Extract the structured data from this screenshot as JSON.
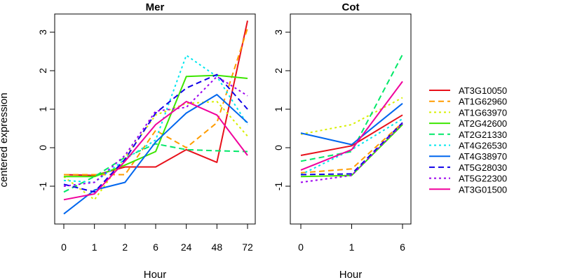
{
  "figure": {
    "ylabel": "centered expression"
  },
  "chart_data": [
    {
      "type": "line",
      "title": "Mer",
      "xlabel": "Hour",
      "ylabel": "centered expression",
      "categories": [
        "0",
        "1",
        "2",
        "6",
        "24",
        "48",
        "72"
      ],
      "ylim": [
        -2.0,
        3.4
      ],
      "yticks": [
        -1,
        0,
        1,
        2,
        3
      ],
      "grid": false,
      "series": [
        {
          "name": "AT3G10050",
          "color": "#e8101a",
          "dash": "solid",
          "values": [
            -0.7,
            -0.72,
            -0.5,
            -0.5,
            -0.05,
            -0.38,
            3.3
          ]
        },
        {
          "name": "AT1G62960",
          "color": "#ff9c00",
          "dash": "dashed",
          "values": [
            -0.7,
            -0.7,
            -0.7,
            0.45,
            0.0,
            0.65,
            3.1
          ]
        },
        {
          "name": "AT1G63970",
          "color": "#d7f000",
          "dash": "dotted",
          "values": [
            -0.75,
            -1.35,
            -0.25,
            0.85,
            1.15,
            1.2,
            0.3
          ]
        },
        {
          "name": "AT2G42600",
          "color": "#3ce600",
          "dash": "solid",
          "values": [
            -0.75,
            -0.75,
            -0.45,
            -0.1,
            1.85,
            1.88,
            1.8
          ]
        },
        {
          "name": "AT2G21330",
          "color": "#00e868",
          "dash": "dashed",
          "values": [
            -1.15,
            -0.75,
            -0.25,
            0.1,
            -0.05,
            -0.08,
            -0.1
          ]
        },
        {
          "name": "AT4G26530",
          "color": "#00e6ee",
          "dash": "dotted",
          "values": [
            -0.85,
            -0.9,
            -0.3,
            0.2,
            2.4,
            1.85,
            0.6
          ]
        },
        {
          "name": "AT4G38970",
          "color": "#0066ee",
          "dash": "solid",
          "values": [
            -1.72,
            -1.1,
            -0.9,
            0.15,
            0.9,
            1.38,
            0.65
          ]
        },
        {
          "name": "AT5G28030",
          "color": "#1000e8",
          "dash": "dashed",
          "values": [
            -0.95,
            -1.15,
            -0.3,
            0.9,
            1.55,
            1.9,
            1.0
          ]
        },
        {
          "name": "AT5G22300",
          "color": "#9b00ee",
          "dash": "dotted",
          "values": [
            -1.0,
            -0.9,
            -0.2,
            0.95,
            1.05,
            1.85,
            1.35
          ]
        },
        {
          "name": "AT3G01500",
          "color": "#f0009c",
          "dash": "solid",
          "values": [
            -1.35,
            -1.2,
            -0.35,
            0.6,
            1.2,
            0.85,
            -0.2
          ]
        }
      ]
    },
    {
      "type": "line",
      "title": "Cot",
      "xlabel": "Hour",
      "categories": [
        "0",
        "1",
        "6"
      ],
      "ylim": [
        -2.0,
        3.4
      ],
      "yticks": [
        -1,
        0,
        1,
        2,
        3
      ],
      "grid": false,
      "series": [
        {
          "name": "AT3G10050",
          "color": "#e8101a",
          "dash": "solid",
          "values": [
            -0.2,
            0.05,
            0.85
          ]
        },
        {
          "name": "AT1G62960",
          "color": "#ff9c00",
          "dash": "dashed",
          "values": [
            -0.65,
            -0.55,
            0.65
          ]
        },
        {
          "name": "AT1G63970",
          "color": "#d7f000",
          "dash": "dotted",
          "values": [
            0.35,
            0.6,
            1.3
          ]
        },
        {
          "name": "AT2G42600",
          "color": "#3ce600",
          "dash": "solid",
          "values": [
            -0.75,
            -0.72,
            0.6
          ]
        },
        {
          "name": "AT2G21330",
          "color": "#00e868",
          "dash": "dashed",
          "values": [
            -0.35,
            -0.1,
            2.42
          ]
        },
        {
          "name": "AT4G26530",
          "color": "#00e6ee",
          "dash": "dotted",
          "values": [
            -0.7,
            -0.05,
            0.75
          ]
        },
        {
          "name": "AT4G38970",
          "color": "#0066ee",
          "dash": "solid",
          "values": [
            0.38,
            0.08,
            1.15
          ]
        },
        {
          "name": "AT5G28030",
          "color": "#1000e8",
          "dash": "dashed",
          "values": [
            -0.7,
            -0.68,
            0.65
          ]
        },
        {
          "name": "AT5G22300",
          "color": "#9b00ee",
          "dash": "dotted",
          "values": [
            -0.9,
            -0.72,
            0.62
          ]
        },
        {
          "name": "AT3G01500",
          "color": "#f0009c",
          "dash": "solid",
          "values": [
            -0.58,
            -0.05,
            1.72
          ]
        }
      ]
    }
  ],
  "legend": {
    "placement": "right",
    "entries": [
      {
        "label": "AT3G10050",
        "color": "#e8101a",
        "dash": "solid"
      },
      {
        "label": "AT1G62960",
        "color": "#ff9c00",
        "dash": "dashed"
      },
      {
        "label": "AT1G63970",
        "color": "#d7f000",
        "dash": "dotted"
      },
      {
        "label": "AT2G42600",
        "color": "#3ce600",
        "dash": "solid"
      },
      {
        "label": "AT2G21330",
        "color": "#00e868",
        "dash": "dashed"
      },
      {
        "label": "AT4G26530",
        "color": "#00e6ee",
        "dash": "dotted"
      },
      {
        "label": "AT4G38970",
        "color": "#0066ee",
        "dash": "solid"
      },
      {
        "label": "AT5G28030",
        "color": "#1000e8",
        "dash": "dashed"
      },
      {
        "label": "AT5G22300",
        "color": "#9b00ee",
        "dash": "dotted"
      },
      {
        "label": "AT3G01500",
        "color": "#f0009c",
        "dash": "solid"
      }
    ]
  }
}
